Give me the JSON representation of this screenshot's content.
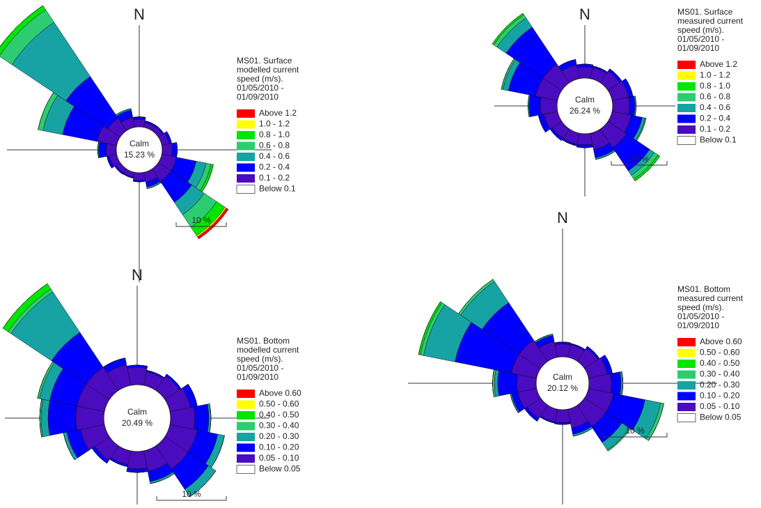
{
  "chart_data": [
    {
      "type": "rose",
      "north": "N",
      "title": [
        "MS01. Surface",
        "modelled current",
        "speed (m/s).",
        "01/05/2010 -",
        "01/09/2010"
      ],
      "x": [
        0,
        22.5,
        45,
        67.5,
        90,
        112.5,
        135,
        157.5,
        180,
        202.5,
        225,
        247.5,
        270,
        292.5,
        315,
        337.5
      ],
      "series": [
        {
          "name": "Above 1.2",
          "color": "#ff0000",
          "values": [
            0,
            0,
            0,
            0,
            0,
            0,
            0.5,
            0,
            0,
            0,
            0,
            0,
            0,
            0,
            0,
            0
          ]
        },
        {
          "name": "1.0 - 1.2",
          "color": "#ffff00",
          "values": [
            0,
            0,
            0,
            0,
            0,
            0,
            0.3,
            0,
            0,
            0,
            0,
            0,
            0,
            0,
            0,
            0
          ]
        },
        {
          "name": "0.8 - 1.0",
          "color": "#00e600",
          "values": [
            0,
            0,
            0,
            0,
            0,
            0.5,
            2,
            0,
            0,
            0,
            0,
            0,
            0,
            0,
            1,
            0
          ]
        },
        {
          "name": "0.6 - 0.8",
          "color": "#2ecc71",
          "values": [
            0,
            0,
            0,
            0,
            0,
            1,
            3,
            0,
            0,
            0,
            0,
            0,
            0,
            1,
            3,
            0
          ]
        },
        {
          "name": "0.4 - 0.6",
          "color": "#17a3a3",
          "values": [
            0,
            0,
            0,
            0,
            0,
            2,
            3,
            0.3,
            0,
            0,
            0,
            0,
            0.2,
            4,
            13,
            0.3
          ]
        },
        {
          "name": "0.2 - 0.4",
          "color": "#0000ff",
          "values": [
            0.5,
            0.3,
            0.3,
            0.5,
            1,
            4,
            5,
            1,
            0.3,
            0.2,
            0.3,
            0.5,
            1.5,
            7,
            10,
            1.5
          ]
        },
        {
          "name": "0.1 - 0.2",
          "color": "#4b0bbf",
          "values": [
            1.5,
            1,
            1,
            1.5,
            2,
            3,
            3,
            2,
            1.5,
            1,
            1,
            1.5,
            2,
            4,
            3,
            2
          ]
        }
      ],
      "calm": {
        "label": "Calm",
        "value": 15.23,
        "value_label": "15.23 %"
      },
      "calm_legend": "Below 0.1",
      "scale": {
        "value": 10,
        "label": "10 %"
      }
    },
    {
      "type": "rose",
      "north": "N",
      "title": [
        "MS01. Surface",
        "measured current",
        "speed (m/s).",
        "01/05/2010 -",
        "01/09/2010"
      ],
      "x": [
        0,
        22.5,
        45,
        67.5,
        90,
        112.5,
        135,
        157.5,
        180,
        202.5,
        225,
        247.5,
        270,
        292.5,
        315,
        337.5
      ],
      "series": [
        {
          "name": "Above 1.2",
          "color": "#ff0000",
          "values": [
            0,
            0,
            0,
            0,
            0,
            0,
            0,
            0,
            0,
            0,
            0,
            0,
            0,
            0,
            0,
            0
          ]
        },
        {
          "name": "1.0 - 1.2",
          "color": "#ffff00",
          "values": [
            0,
            0,
            0,
            0,
            0,
            0,
            0,
            0,
            0,
            0,
            0,
            0,
            0,
            0,
            0,
            0
          ]
        },
        {
          "name": "0.8 - 1.0",
          "color": "#00e600",
          "values": [
            0,
            0,
            0,
            0,
            0,
            0,
            0.4,
            0,
            0,
            0,
            0,
            0,
            0,
            0,
            0.3,
            0
          ]
        },
        {
          "name": "0.6 - 0.8",
          "color": "#2ecc71",
          "values": [
            0,
            0,
            0,
            0,
            0,
            0.2,
            0.8,
            0,
            0,
            0,
            0,
            0,
            0,
            0.3,
            0.7,
            0
          ]
        },
        {
          "name": "0.4 - 0.6",
          "color": "#17a3a3",
          "values": [
            0,
            0,
            0,
            0,
            0.2,
            0.5,
            1,
            0.3,
            0,
            0,
            0,
            0,
            0.2,
            1,
            2,
            0
          ]
        },
        {
          "name": "0.2 - 0.4",
          "color": "#0000ff",
          "values": [
            0.5,
            0.3,
            0.5,
            0.8,
            1,
            2,
            5,
            1.5,
            0.5,
            0.3,
            0.5,
            1,
            2,
            5,
            8,
            1
          ]
        },
        {
          "name": "0.1 - 0.2",
          "color": "#4b0bbf",
          "values": [
            2,
            2,
            2.5,
            3,
            3,
            3.5,
            4,
            3,
            2,
            2,
            2,
            2.5,
            3,
            4,
            4,
            2.5
          ]
        }
      ],
      "calm": {
        "label": "Calm",
        "value": 26.24,
        "value_label": "26.24 %"
      },
      "calm_legend": "Below 0.1",
      "scale": {
        "value": 10,
        "label": "10 %"
      }
    },
    {
      "type": "rose",
      "north": "N",
      "title": [
        "MS01. Bottom",
        "modelled current",
        "speed (m/s).",
        "01/05/2010 -",
        "01/09/2010"
      ],
      "x": [
        0,
        22.5,
        45,
        67.5,
        90,
        112.5,
        135,
        157.5,
        180,
        202.5,
        225,
        247.5,
        270,
        292.5,
        315,
        337.5
      ],
      "series": [
        {
          "name": "Above 0.60",
          "color": "#ff0000",
          "values": [
            0,
            0,
            0,
            0,
            0,
            0,
            0,
            0,
            0,
            0,
            0,
            0,
            0,
            0,
            0,
            0
          ]
        },
        {
          "name": "0.50 - 0.60",
          "color": "#ffff00",
          "values": [
            0,
            0,
            0,
            0,
            0,
            0,
            0,
            0,
            0,
            0,
            0,
            0,
            0,
            0,
            0,
            0
          ]
        },
        {
          "name": "0.40 - 0.50",
          "color": "#00e600",
          "values": [
            0,
            0,
            0,
            0,
            0,
            0,
            0,
            0,
            0,
            0,
            0,
            0,
            0,
            0,
            0.9,
            0
          ]
        },
        {
          "name": "0.30 - 0.40",
          "color": "#2ecc71",
          "values": [
            0,
            0,
            0,
            0,
            0,
            0,
            0,
            0,
            0,
            0,
            0,
            0,
            0.2,
            0.3,
            0.5,
            0
          ]
        },
        {
          "name": "0.20 - 0.30",
          "color": "#17a3a3",
          "values": [
            0,
            0,
            0,
            0,
            0.3,
            1,
            1.3,
            0.3,
            0,
            0,
            0,
            0.5,
            1,
            1.5,
            7,
            0
          ]
        },
        {
          "name": "0.10 - 0.20",
          "color": "#0000ff",
          "values": [
            0.3,
            0.2,
            0.3,
            1,
            2,
            3,
            3.5,
            1.5,
            0.5,
            0.3,
            0.5,
            2,
            4,
            4,
            6,
            1
          ]
        },
        {
          "name": "0.05 - 0.10",
          "color": "#4b0bbf",
          "values": [
            2.5,
            2,
            2.5,
            3,
            3.5,
            4,
            4,
            3,
            2.5,
            2,
            2.5,
            3.5,
            4,
            4,
            4,
            3
          ]
        }
      ],
      "calm": {
        "label": "Calm",
        "value": 20.49,
        "value_label": "20.49 %"
      },
      "calm_legend": "Below 0.05",
      "scale": {
        "value": 10,
        "label": "10 %"
      }
    },
    {
      "type": "rose",
      "north": "N",
      "title": [
        "MS01. Bottom",
        "measured current",
        "speed (m/s).",
        "01/05/2010 -",
        "01/09/2010"
      ],
      "x": [
        0,
        22.5,
        45,
        67.5,
        90,
        112.5,
        135,
        157.5,
        180,
        202.5,
        225,
        247.5,
        270,
        292.5,
        315,
        337.5
      ],
      "series": [
        {
          "name": "Above 0.60",
          "color": "#ff0000",
          "values": [
            0,
            0,
            0,
            0,
            0,
            0,
            0,
            0,
            0,
            0,
            0,
            0,
            0,
            0,
            0,
            0
          ]
        },
        {
          "name": "0.50 - 0.60",
          "color": "#ffff00",
          "values": [
            0,
            0,
            0,
            0,
            0,
            0,
            0,
            0,
            0,
            0,
            0,
            0,
            0,
            0,
            0,
            0
          ]
        },
        {
          "name": "0.40 - 0.50",
          "color": "#00e600",
          "values": [
            0,
            0,
            0,
            0,
            0,
            0,
            0,
            0,
            0,
            0,
            0,
            0,
            0,
            0.3,
            0,
            0
          ]
        },
        {
          "name": "0.30 - 0.40",
          "color": "#2ecc71",
          "values": [
            0,
            0,
            0,
            0,
            0,
            0.5,
            0.2,
            0,
            0,
            0,
            0,
            0,
            0.3,
            0.5,
            0.4,
            0
          ]
        },
        {
          "name": "0.20 - 0.30",
          "color": "#17a3a3",
          "values": [
            0,
            0,
            0,
            0,
            0.3,
            2.5,
            1.4,
            0.3,
            0,
            0,
            0,
            0.2,
            0.5,
            5,
            4,
            0.2
          ]
        },
        {
          "name": "0.10 - 0.20",
          "color": "#0000ff",
          "values": [
            0.3,
            0.2,
            0.3,
            0.8,
            1.5,
            5,
            3,
            1,
            0.3,
            0.2,
            0.5,
            1,
            3,
            9,
            7,
            1
          ]
        },
        {
          "name": "0.05 - 0.10",
          "color": "#4b0bbf",
          "values": [
            2,
            2,
            2.5,
            3,
            3.5,
            4,
            4,
            3,
            2,
            2,
            2.5,
            3,
            3,
            4,
            4,
            2.5
          ]
        }
      ],
      "calm": {
        "label": "Calm",
        "value": 20.12,
        "value_label": "20.12 %"
      },
      "calm_legend": "Below 0.05",
      "scale": {
        "value": 10,
        "label": "10 %"
      }
    }
  ]
}
